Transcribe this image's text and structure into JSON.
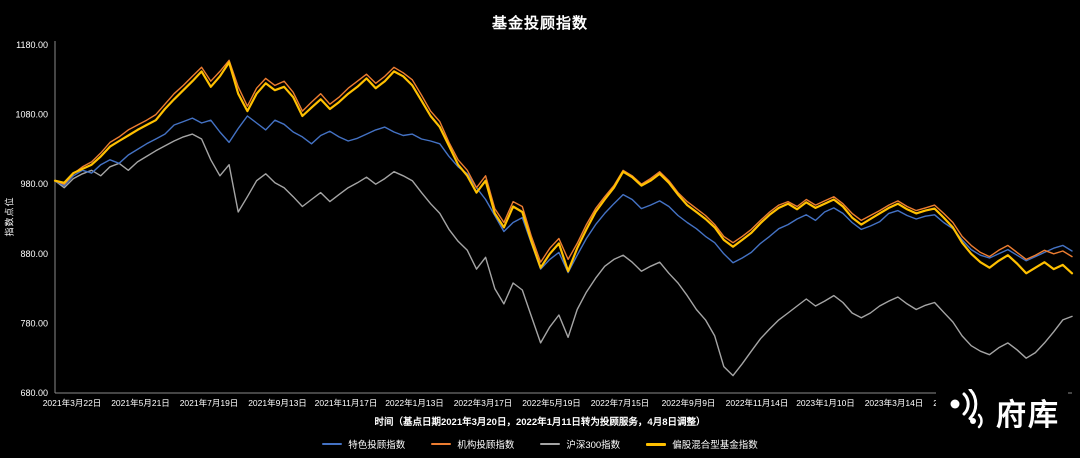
{
  "watermark": {
    "text": "府库"
  },
  "chart_data": {
    "type": "line",
    "title": "基金投顾指数",
    "ylabel": "指数点位",
    "xlabel": "时间（基点日期2021年3月20日，2022年1月11日转为投顾服务，4月8日调整）",
    "ylim": [
      680,
      1180
    ],
    "ytick_values": [
      1180,
      1080,
      980,
      880,
      780,
      680
    ],
    "ytick_format_decimals": 2,
    "grid": false,
    "background": "#000000",
    "text_color": "#ffffff",
    "axis_color": "#8a8a8a",
    "legend_position": "bottom",
    "x_tick_labels": [
      "2021年3月22日",
      "2021年5月21日",
      "2021年7月19日",
      "2021年9月13日",
      "2021年11月17日",
      "2022年1月13日",
      "2022年3月17日",
      "2022年5月19日",
      "2022年7月15日",
      "2022年9月9日",
      "2022年11月14日",
      "2023年1月10日",
      "2023年3月14日",
      "2023年5月16日"
    ],
    "series": [
      {
        "name": "特色投顾指数",
        "color": "#4472C4",
        "width": 1.4,
        "z": 2,
        "values": [
          985,
          978,
          992,
          1000,
          996,
          1008,
          1015,
          1010,
          1022,
          1030,
          1038,
          1045,
          1052,
          1065,
          1070,
          1075,
          1068,
          1072,
          1055,
          1040,
          1060,
          1078,
          1068,
          1058,
          1072,
          1066,
          1055,
          1048,
          1038,
          1050,
          1056,
          1048,
          1042,
          1046,
          1052,
          1058,
          1062,
          1055,
          1050,
          1052,
          1045,
          1042,
          1038,
          1020,
          1005,
          995,
          975,
          958,
          935,
          912,
          925,
          932,
          895,
          858,
          872,
          882,
          853,
          878,
          902,
          922,
          938,
          952,
          965,
          958,
          945,
          950,
          956,
          948,
          935,
          925,
          916,
          905,
          896,
          880,
          867,
          874,
          882,
          895,
          905,
          916,
          922,
          930,
          936,
          928,
          940,
          946,
          938,
          925,
          915,
          920,
          926,
          938,
          942,
          935,
          930,
          934,
          936,
          925,
          916,
          900,
          886,
          878,
          874,
          880,
          886,
          878,
          870,
          876,
          882,
          888,
          892,
          884
        ]
      },
      {
        "name": "机构投顾指数",
        "color": "#ED7D31",
        "width": 1.4,
        "z": 3,
        "values": [
          985,
          980,
          995,
          1005,
          1012,
          1025,
          1040,
          1048,
          1058,
          1065,
          1072,
          1080,
          1095,
          1110,
          1122,
          1135,
          1148,
          1128,
          1142,
          1158,
          1120,
          1092,
          1118,
          1132,
          1122,
          1128,
          1112,
          1085,
          1098,
          1110,
          1095,
          1105,
          1118,
          1128,
          1138,
          1125,
          1135,
          1148,
          1140,
          1130,
          1108,
          1085,
          1070,
          1040,
          1015,
          1000,
          975,
          992,
          945,
          925,
          955,
          948,
          905,
          868,
          888,
          902,
          872,
          895,
          922,
          945,
          962,
          978,
          1000,
          992,
          980,
          988,
          998,
          985,
          968,
          955,
          945,
          935,
          922,
          905,
          896,
          905,
          915,
          928,
          940,
          950,
          955,
          948,
          958,
          950,
          956,
          962,
          952,
          938,
          928,
          935,
          942,
          950,
          956,
          948,
          942,
          946,
          950,
          938,
          925,
          905,
          892,
          882,
          876,
          885,
          892,
          882,
          872,
          878,
          885,
          880,
          884,
          876
        ]
      },
      {
        "name": "沪深300指数",
        "color": "#A5A5A5",
        "width": 1.4,
        "z": 1,
        "values": [
          985,
          975,
          988,
          995,
          1000,
          992,
          1005,
          1010,
          1000,
          1012,
          1020,
          1028,
          1035,
          1042,
          1048,
          1052,
          1045,
          1015,
          992,
          1008,
          940,
          962,
          985,
          995,
          982,
          975,
          962,
          948,
          958,
          968,
          955,
          965,
          975,
          982,
          990,
          980,
          988,
          998,
          992,
          985,
          968,
          952,
          938,
          915,
          898,
          885,
          858,
          875,
          830,
          808,
          838,
          828,
          790,
          752,
          775,
          792,
          760,
          800,
          825,
          845,
          862,
          872,
          878,
          868,
          855,
          862,
          868,
          852,
          838,
          820,
          800,
          785,
          762,
          718,
          705,
          722,
          740,
          758,
          772,
          785,
          795,
          805,
          815,
          805,
          812,
          820,
          810,
          795,
          788,
          795,
          805,
          812,
          818,
          808,
          800,
          806,
          810,
          796,
          782,
          762,
          748,
          740,
          735,
          745,
          752,
          742,
          730,
          738,
          752,
          768,
          785,
          790
        ]
      },
      {
        "name": "偏股混合型基金指数",
        "color": "#FFC000",
        "width": 2.2,
        "z": 4,
        "values": [
          985,
          982,
          996,
          1002,
          1008,
          1020,
          1034,
          1042,
          1050,
          1058,
          1065,
          1072,
          1088,
          1102,
          1115,
          1128,
          1142,
          1120,
          1135,
          1155,
          1110,
          1085,
          1110,
          1125,
          1115,
          1120,
          1105,
          1078,
          1090,
          1102,
          1088,
          1098,
          1110,
          1120,
          1132,
          1118,
          1128,
          1142,
          1135,
          1122,
          1100,
          1078,
          1062,
          1035,
          1008,
          992,
          968,
          985,
          938,
          918,
          948,
          940,
          898,
          860,
          880,
          895,
          855,
          888,
          915,
          940,
          958,
          975,
          998,
          990,
          978,
          985,
          995,
          982,
          965,
          950,
          940,
          930,
          918,
          900,
          890,
          900,
          910,
          924,
          936,
          946,
          952,
          944,
          954,
          946,
          952,
          958,
          948,
          932,
          922,
          930,
          938,
          946,
          952,
          944,
          938,
          942,
          945,
          932,
          918,
          896,
          880,
          868,
          860,
          870,
          878,
          866,
          852,
          860,
          868,
          858,
          864,
          852
        ]
      }
    ]
  }
}
